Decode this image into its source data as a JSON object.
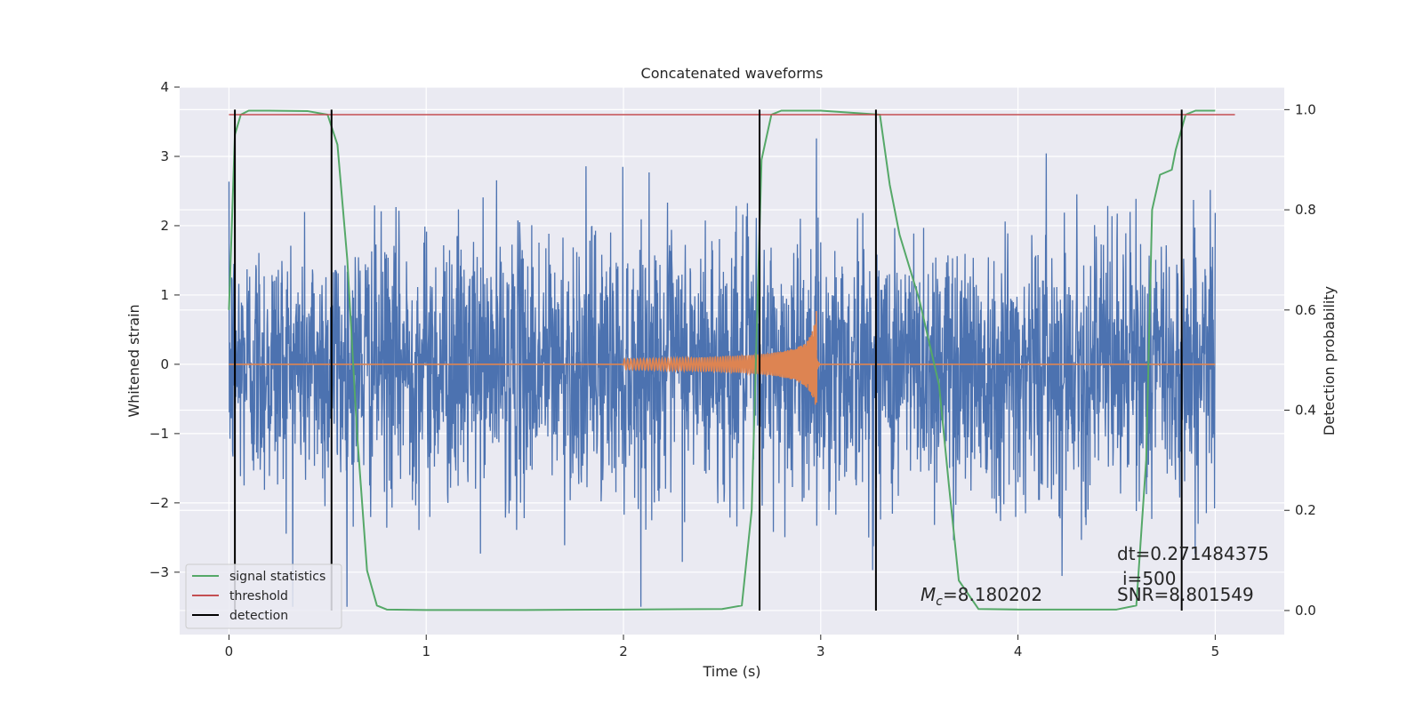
{
  "chart_data": {
    "type": "line",
    "title": "Concatenated waveforms",
    "xlabel": "Time (s)",
    "ylabel": "Whitened strain",
    "y2label": "Detection probability",
    "xlim": [
      -0.25,
      5.35
    ],
    "ylim": [
      -3.9,
      4.0
    ],
    "y2lim": [
      -0.048,
      1.045
    ],
    "xticks": [
      0,
      1,
      2,
      3,
      4,
      5
    ],
    "yticks": [
      -3,
      -2,
      -1,
      0,
      1,
      2,
      3,
      4
    ],
    "y2ticks": [
      0.0,
      0.2,
      0.4,
      0.6,
      0.8,
      1.0
    ],
    "xtick_labels": [
      "0",
      "1",
      "2",
      "3",
      "4",
      "5"
    ],
    "ytick_labels": [
      "−3",
      "−2",
      "−1",
      "0",
      "1",
      "2",
      "3",
      "4"
    ],
    "y2tick_labels": [
      "0.0",
      "0.2",
      "0.4",
      "0.6",
      "0.8",
      "1.0"
    ],
    "grid": true,
    "legend_position": "lower-left",
    "legend": [
      "signal statistics",
      "threshold",
      "detection"
    ],
    "colors": {
      "noise": "#4c72b0",
      "waveform": "#dd8452",
      "signal_statistics": "#55a868",
      "threshold": "#c44e52",
      "detection": "#000000",
      "background": "#eaeaf2",
      "grid": "#ffffff"
    },
    "series": [
      {
        "name": "noise",
        "x_range": [
          0,
          5.0
        ],
        "y_envelope": [
          -3.5,
          3.65
        ]
      },
      {
        "name": "waveform",
        "x_range": [
          0,
          5.0
        ],
        "chirp_start": 2.0,
        "chirp_end": 2.98,
        "peak_amplitude": 1.25
      },
      {
        "name": "signal statistics",
        "x": [
          0.0,
          0.03,
          0.06,
          0.1,
          0.2,
          0.4,
          0.5,
          0.55,
          0.6,
          0.65,
          0.7,
          0.75,
          0.8,
          1.0,
          1.5,
          2.0,
          2.5,
          2.6,
          2.65,
          2.7,
          2.75,
          2.8,
          3.0,
          3.3,
          3.35,
          3.4,
          3.5,
          3.6,
          3.65,
          3.7,
          3.8,
          4.0,
          4.5,
          4.6,
          4.65,
          4.68,
          4.72,
          4.78,
          4.8,
          4.85,
          4.9,
          5.0
        ],
        "y": [
          0.6,
          0.95,
          0.99,
          0.998,
          0.998,
          0.997,
          0.99,
          0.93,
          0.7,
          0.35,
          0.08,
          0.01,
          0.002,
          0.001,
          0.001,
          0.002,
          0.003,
          0.01,
          0.2,
          0.9,
          0.99,
          0.998,
          0.998,
          0.99,
          0.85,
          0.75,
          0.62,
          0.45,
          0.25,
          0.06,
          0.003,
          0.002,
          0.002,
          0.01,
          0.3,
          0.8,
          0.87,
          0.88,
          0.92,
          0.99,
          0.998,
          0.998
        ]
      },
      {
        "name": "threshold",
        "x": [
          0.0,
          5.1
        ],
        "y": [
          0.99,
          0.99
        ]
      },
      {
        "name": "detection",
        "x": [
          0.03,
          0.52,
          2.69,
          3.28,
          4.83
        ]
      }
    ],
    "annotations": [
      {
        "id": "mc",
        "prefix": "M",
        "subscript": "c",
        "text": "=8.180202"
      },
      {
        "id": "dt",
        "text": "dt=0.271484375"
      },
      {
        "id": "i",
        "text": "i=500"
      },
      {
        "id": "snr",
        "text": "SNR=8.801549"
      }
    ]
  }
}
